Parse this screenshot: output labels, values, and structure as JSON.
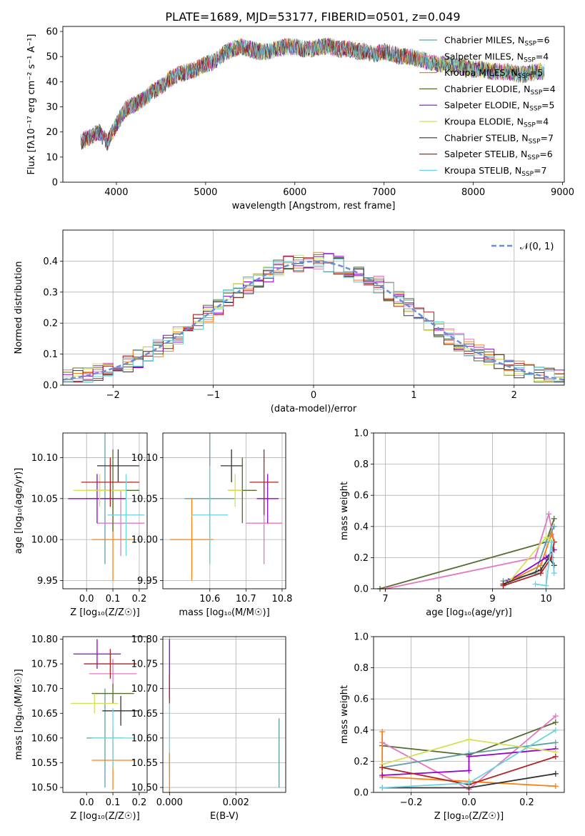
{
  "title": "PLATE=1689, MJD=53177, FIBERID=0501, z=0.049",
  "colors": [
    "#5f9ea0",
    "#e377c2",
    "#ff7f0e",
    "#556b2f",
    "#9400d3",
    "#d4e157",
    "#333333",
    "#b22222",
    "#6bd3e0"
  ],
  "chart_data": [
    {
      "id": "spectrum",
      "type": "line",
      "xlabel": "wavelength [Angstrom, rest frame]",
      "ylabel": "Flux [fλ10⁻¹⁷ erg cm⁻² s⁻¹ A⁻¹]",
      "xlim": [
        3400,
        9020
      ],
      "ylim": [
        0,
        62
      ],
      "xticks": [
        4000,
        5000,
        6000,
        7000,
        8000,
        9000
      ],
      "yticks": [
        0,
        10,
        20,
        30,
        40,
        50,
        60
      ],
      "series_legend": [
        {
          "name": "Chabrier MILES, N",
          "sub": "SSP",
          "n": "=6",
          "color": "#5f9ea0"
        },
        {
          "name": "Salpeter MILES, N",
          "sub": "SSP",
          "n": "=4",
          "color": "#e377c2"
        },
        {
          "name": "Kroupa MILES, N",
          "sub": "SSP",
          "n": "=5",
          "color": "#ff7f0e"
        },
        {
          "name": "Chabrier ELODIE, N",
          "sub": "SSP",
          "n": "=4",
          "color": "#556b2f"
        },
        {
          "name": "Salpeter ELODIE, N",
          "sub": "SSP",
          "n": "=5",
          "color": "#9400d3"
        },
        {
          "name": "Kroupa ELODIE, N",
          "sub": "SSP",
          "n": "=4",
          "color": "#d4e157"
        },
        {
          "name": "Chabrier STELIB, N",
          "sub": "SSP",
          "n": "=7",
          "color": "#333333"
        },
        {
          "name": "Salpeter STELIB, N",
          "sub": "SSP",
          "n": "=6",
          "color": "#b22222"
        },
        {
          "name": "Kroupa STELIB, N",
          "sub": "SSP",
          "n": "=7",
          "color": "#6bd3e0"
        }
      ],
      "envelope": {
        "x": [
          3600,
          3700,
          3800,
          3900,
          4000,
          4100,
          4200,
          4300,
          4400,
          4500,
          4600,
          4700,
          4800,
          4900,
          5000,
          5100,
          5200,
          5300,
          5400,
          5500,
          5600,
          5700,
          5800,
          5900,
          6000,
          6100,
          6200,
          6300,
          6400,
          6500,
          6600,
          6700,
          6800,
          6900,
          7000,
          7100,
          7200,
          7300,
          7400,
          7500,
          7600,
          7700,
          7800,
          7900,
          8000,
          8100,
          8200,
          8300,
          8400,
          8500,
          8600,
          8700,
          8800
        ],
        "y": [
          16,
          18,
          20,
          16,
          23,
          29,
          31,
          33,
          36,
          38,
          41,
          43,
          44,
          45,
          47,
          48,
          51,
          53,
          54,
          53,
          52,
          52,
          53,
          54,
          54,
          53,
          53,
          54,
          54,
          53,
          53,
          52,
          52,
          51,
          52,
          51,
          50,
          50,
          49,
          48,
          47,
          47,
          46,
          46,
          45,
          45,
          44,
          44,
          44,
          43,
          43,
          44,
          44
        ]
      }
    },
    {
      "id": "histogram",
      "type": "area",
      "xlabel": "(data-model)/error",
      "ylabel": "Normed distribution",
      "xlim": [
        -2.5,
        2.5
      ],
      "ylim": [
        0,
        0.5
      ],
      "xticks": [
        -2,
        -1,
        0,
        1,
        2
      ],
      "xticklabels": [
        "−2",
        "−1",
        "0",
        "1",
        "2"
      ],
      "yticks": [
        0,
        0.1,
        0.2,
        0.3,
        0.4
      ],
      "yticklabels": [
        "0.0",
        "0.1",
        "0.2",
        "0.3",
        "0.4"
      ],
      "legend": "𝒩(0, 1)",
      "bin_width": 0.1
    },
    {
      "id": "age-vs-z",
      "type": "scatter",
      "xlabel": "Z [log₁₀(Z/Z☉)]",
      "ylabel": "age  [log₁₀(age/yr)]",
      "xlim": [
        -0.09,
        0.23
      ],
      "ylim": [
        9.94,
        10.13
      ],
      "xticks": [
        0.0,
        0.1,
        0.2
      ],
      "xticklabels": [
        "0.0",
        "0.1",
        "0.2"
      ],
      "yticks": [
        9.95,
        10.0,
        10.05,
        10.1
      ],
      "yticklabels": [
        "9.95",
        "10.00",
        "10.05",
        "10.10"
      ],
      "points": [
        {
          "x": 0.07,
          "y": 10.05,
          "xerr": 0.07,
          "yerr": 0.08,
          "c": 0
        },
        {
          "x": 0.13,
          "y": 10.02,
          "xerr": 0.09,
          "yerr": 0.04,
          "c": 1
        },
        {
          "x": 0.1,
          "y": 10.0,
          "xerr": 0.08,
          "yerr": 0.05,
          "c": 2
        },
        {
          "x": 0.1,
          "y": 10.06,
          "xerr": 0.1,
          "yerr": 0.05,
          "c": 3
        },
        {
          "x": 0.04,
          "y": 10.05,
          "xerr": 0.11,
          "yerr": 0.03,
          "c": 4
        },
        {
          "x": 0.05,
          "y": 10.06,
          "xerr": 0.1,
          "yerr": 0.02,
          "c": 5
        },
        {
          "x": 0.12,
          "y": 10.09,
          "xerr": 0.08,
          "yerr": 0.02,
          "c": 6
        },
        {
          "x": 0.09,
          "y": 10.07,
          "xerr": 0.11,
          "yerr": 0.03,
          "c": 7
        },
        {
          "x": 0.15,
          "y": 10.03,
          "xerr": 0.07,
          "yerr": 0.05,
          "c": 8
        }
      ]
    },
    {
      "id": "age-vs-mass",
      "type": "scatter",
      "xlabel": "mass [log₁₀(M/M☉)]",
      "ylabel": "",
      "xlim": [
        10.47,
        10.81
      ],
      "ylim": [
        9.94,
        10.13
      ],
      "xticks": [
        10.6,
        10.7,
        10.8
      ],
      "xticklabels": [
        "10.6",
        "10.7",
        "10.8"
      ],
      "yticks": [
        9.95,
        10.0,
        10.05,
        10.1
      ],
      "yticklabels": [
        "9.95",
        "10.00",
        "10.05",
        "10.10"
      ],
      "points": [
        {
          "x": 10.6,
          "y": 10.05,
          "xerr": 0.07,
          "yerr": 0.08,
          "c": 0
        },
        {
          "x": 10.75,
          "y": 10.02,
          "xerr": 0.05,
          "yerr": 0.05,
          "c": 1
        },
        {
          "x": 10.55,
          "y": 10.0,
          "xerr": 0.06,
          "yerr": 0.05,
          "c": 2
        },
        {
          "x": 10.69,
          "y": 10.06,
          "xerr": 0.04,
          "yerr": 0.04,
          "c": 3
        },
        {
          "x": 10.76,
          "y": 10.05,
          "xerr": 0.03,
          "yerr": 0.03,
          "c": 4
        },
        {
          "x": 10.67,
          "y": 10.06,
          "xerr": 0.02,
          "yerr": 0.02,
          "c": 5
        },
        {
          "x": 10.66,
          "y": 10.09,
          "xerr": 0.03,
          "yerr": 0.02,
          "c": 6
        },
        {
          "x": 10.75,
          "y": 10.07,
          "xerr": 0.04,
          "yerr": 0.04,
          "c": 7
        },
        {
          "x": 10.6,
          "y": 10.03,
          "xerr": 0.05,
          "yerr": 0.06,
          "c": 8
        }
      ]
    },
    {
      "id": "mass-weight-vs-age",
      "type": "line",
      "xlabel": "age  [log₁₀(age/yr)]",
      "ylabel": "mass weight",
      "xlim": [
        6.78,
        10.34
      ],
      "ylim": [
        0,
        1
      ],
      "xticks": [
        7,
        8,
        9,
        10
      ],
      "xticklabels": [
        "7",
        "8",
        "9",
        "10"
      ],
      "yticks": [
        0,
        0.2,
        0.4,
        0.6,
        0.8,
        1.0
      ],
      "yticklabels": [
        "0.0",
        "0.2",
        "0.4",
        "0.6",
        "0.8",
        "1.0"
      ],
      "series": [
        {
          "c": 3,
          "points": [
            [
              6.9,
              0.0
            ],
            [
              10.0,
              0.3
            ],
            [
              10.15,
              0.45
            ]
          ]
        },
        {
          "c": 1,
          "points": [
            [
              7.0,
              0.0
            ],
            [
              9.8,
              0.2
            ],
            [
              10.05,
              0.48
            ],
            [
              10.15,
              0.3
            ]
          ]
        },
        {
          "c": 0,
          "points": [
            [
              9.2,
              0.05
            ],
            [
              9.8,
              0.1
            ],
            [
              10.0,
              0.3
            ],
            [
              10.15,
              0.4
            ]
          ]
        },
        {
          "c": 2,
          "points": [
            [
              9.2,
              0.03
            ],
            [
              9.9,
              0.15
            ],
            [
              10.1,
              0.35
            ],
            [
              10.15,
              0.3
            ]
          ]
        },
        {
          "c": 4,
          "points": [
            [
              9.3,
              0.05
            ],
            [
              10.0,
              0.2
            ],
            [
              10.15,
              0.25
            ]
          ]
        },
        {
          "c": 5,
          "points": [
            [
              9.3,
              0.04
            ],
            [
              10.0,
              0.33
            ],
            [
              10.15,
              0.3
            ]
          ]
        },
        {
          "c": 6,
          "points": [
            [
              9.2,
              0.03
            ],
            [
              9.9,
              0.12
            ],
            [
              10.05,
              0.2
            ],
            [
              10.15,
              0.15
            ]
          ]
        },
        {
          "c": 7,
          "points": [
            [
              9.2,
              0.02
            ],
            [
              9.9,
              0.1
            ],
            [
              10.1,
              0.2
            ],
            [
              10.15,
              0.3
            ]
          ]
        },
        {
          "c": 8,
          "points": [
            [
              9.8,
              0.03
            ],
            [
              10.0,
              0.02
            ],
            [
              10.1,
              0.3
            ],
            [
              10.15,
              0.1
            ]
          ]
        }
      ]
    },
    {
      "id": "mass-vs-z",
      "type": "scatter",
      "xlabel": "Z [log₁₀(Z/Z☉)]",
      "ylabel": "mass [log₁₀(M/M☉)]",
      "xlim": [
        -0.09,
        0.23
      ],
      "ylim": [
        10.49,
        10.805
      ],
      "xticks": [
        0.0,
        0.1,
        0.2
      ],
      "xticklabels": [
        "0.0",
        "0.1",
        "0.2"
      ],
      "yticks": [
        10.5,
        10.55,
        10.6,
        10.65,
        10.7,
        10.75,
        10.8
      ],
      "yticklabels": [
        "10.50",
        "10.55",
        "10.60",
        "10.65",
        "10.70",
        "10.75",
        "10.80"
      ],
      "points": [
        {
          "x": 0.07,
          "y": 10.6,
          "xerr": 0.07,
          "yerr": 0.1,
          "c": 0
        },
        {
          "x": 0.1,
          "y": 10.73,
          "xerr": 0.09,
          "yerr": 0.03,
          "c": 1
        },
        {
          "x": 0.1,
          "y": 10.555,
          "xerr": 0.08,
          "yerr": 0.06,
          "c": 2
        },
        {
          "x": 0.1,
          "y": 10.69,
          "xerr": 0.08,
          "yerr": 0.02,
          "c": 3
        },
        {
          "x": 0.04,
          "y": 10.77,
          "xerr": 0.09,
          "yerr": 0.03,
          "c": 4
        },
        {
          "x": 0.03,
          "y": 10.67,
          "xerr": 0.09,
          "yerr": 0.02,
          "c": 5
        },
        {
          "x": 0.13,
          "y": 10.655,
          "xerr": 0.07,
          "yerr": 0.03,
          "c": 6
        },
        {
          "x": 0.09,
          "y": 10.75,
          "xerr": 0.1,
          "yerr": 0.03,
          "c": 7
        },
        {
          "x": 0.1,
          "y": 10.6,
          "xerr": 0.08,
          "yerr": 0.06,
          "c": 8
        }
      ]
    },
    {
      "id": "mass-vs-ebv",
      "type": "scatter",
      "xlabel": "E(B-V)",
      "ylabel": "",
      "xlim": [
        -0.0002,
        0.0035
      ],
      "ylim": [
        10.49,
        10.805
      ],
      "xticks": [
        0.0,
        0.002
      ],
      "xticklabels": [
        "0.000",
        "0.002"
      ],
      "yticks": [
        10.5,
        10.55,
        10.6,
        10.65,
        10.7,
        10.75,
        10.8
      ],
      "yticklabels": [
        "10.50",
        "10.55",
        "10.60",
        "10.65",
        "10.70",
        "10.75",
        "10.80"
      ],
      "points": [
        {
          "x": 0.0033,
          "y": 10.57,
          "xerr": 0,
          "yerr": 0.07,
          "c": 0
        },
        {
          "x": 0.0,
          "y": 10.74,
          "xerr": 0,
          "yerr": 0.06,
          "c": 4
        },
        {
          "x": 0.0,
          "y": 10.7,
          "xerr": 0,
          "yerr": 0.03,
          "c": 7
        },
        {
          "x": 0.0,
          "y": 10.6,
          "xerr": 0,
          "yerr": 0.07,
          "c": 8
        },
        {
          "x": 0.0,
          "y": 10.53,
          "xerr": 0,
          "yerr": 0.04,
          "c": 2
        }
      ]
    },
    {
      "id": "mass-weight-vs-z",
      "type": "line",
      "xlabel": "Z [log₁₀(Z/Z☉)]",
      "ylabel": "mass weight",
      "xlim": [
        -0.33,
        0.33
      ],
      "ylim": [
        0,
        1
      ],
      "xticks": [
        -0.2,
        0.0,
        0.2
      ],
      "xticklabels": [
        "−0.2",
        "0.0",
        "0.2"
      ],
      "yticks": [
        0,
        0.2,
        0.4,
        0.6,
        0.8,
        1.0
      ],
      "yticklabels": [
        "0.0",
        "0.2",
        "0.4",
        "0.6",
        "0.8",
        "1.0"
      ],
      "series": [
        {
          "c": 3,
          "points": [
            [
              -0.3,
              0.3
            ],
            [
              0.0,
              0.24
            ],
            [
              0.3,
              0.45
            ]
          ]
        },
        {
          "c": 1,
          "points": [
            [
              -0.3,
              0.32
            ],
            [
              0.0,
              0.02
            ],
            [
              0.3,
              0.49
            ]
          ]
        },
        {
          "c": 0,
          "points": [
            [
              -0.3,
              0.16
            ],
            [
              0.0,
              0.25
            ],
            [
              0.3,
              0.32
            ]
          ]
        },
        {
          "c": 2,
          "points": [
            [
              -0.3,
              0.39
            ],
            [
              -0.3,
              0.1
            ],
            [
              0.0,
              0.07
            ],
            [
              0.3,
              0.04
            ]
          ]
        },
        {
          "c": 4,
          "points": [
            [
              -0.3,
              0.11
            ],
            [
              0.0,
              0.14
            ],
            [
              0.0,
              0.23
            ],
            [
              0.3,
              0.28
            ]
          ]
        },
        {
          "c": 5,
          "points": [
            [
              -0.3,
              0.18
            ],
            [
              0.0,
              0.34
            ],
            [
              0.3,
              0.26
            ]
          ]
        },
        {
          "c": 6,
          "points": [
            [
              -0.3,
              0.03
            ],
            [
              0.0,
              0.03
            ],
            [
              0.3,
              0.12
            ]
          ]
        },
        {
          "c": 7,
          "points": [
            [
              -0.3,
              0.16
            ],
            [
              0.0,
              0.05
            ],
            [
              0.3,
              0.23
            ]
          ]
        },
        {
          "c": 8,
          "points": [
            [
              -0.3,
              0.03
            ],
            [
              0.0,
              0.06
            ],
            [
              0.3,
              0.4
            ]
          ]
        }
      ]
    }
  ]
}
